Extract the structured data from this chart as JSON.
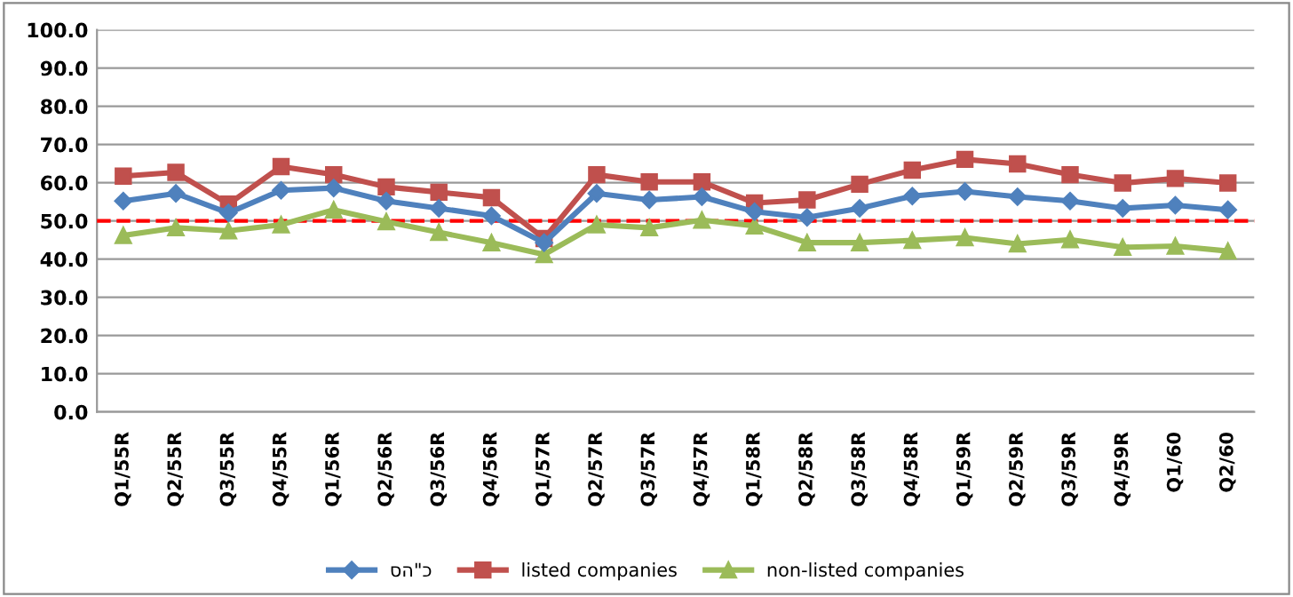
{
  "chart_data": {
    "type": "line",
    "categories": [
      "Q1/55R",
      "Q2/55R",
      "Q3/55R",
      "Q4/55R",
      "Q1/56R",
      "Q2/56R",
      "Q3/56R",
      "Q4/56R",
      "Q1/57R",
      "Q2/57R",
      "Q3/57R",
      "Q4/57R",
      "Q1/58R",
      "Q2/58R",
      "Q3/58R",
      "Q4/58R",
      "Q1/59R",
      "Q2/59R",
      "Q3/59R",
      "Q4/59R",
      "Q1/60",
      "Q2/60"
    ],
    "series": [
      {
        "name": "סה\"כ",
        "color": "#4f81bd",
        "marker": "diamond",
        "values": [
          55.2,
          57.2,
          52.1,
          58.0,
          58.6,
          55.2,
          53.3,
          51.3,
          44.3,
          57.2,
          55.5,
          56.3,
          52.4,
          50.9,
          53.3,
          56.5,
          57.7,
          56.3,
          55.2,
          53.3,
          54.1,
          52.9
        ]
      },
      {
        "name": "listed companies",
        "color": "#c0504d",
        "marker": "square",
        "values": [
          61.7,
          62.7,
          54.4,
          64.2,
          62.1,
          58.9,
          57.5,
          56.1,
          45.4,
          62.1,
          60.2,
          60.2,
          54.7,
          55.5,
          59.6,
          63.3,
          66.1,
          64.9,
          62.1,
          59.9,
          61.1,
          59.9
        ]
      },
      {
        "name": "non-listed companies",
        "color": "#9bbb59",
        "marker": "triangle",
        "values": [
          46.2,
          48.2,
          47.4,
          49.0,
          52.9,
          49.8,
          47.0,
          44.3,
          41.2,
          49.0,
          48.2,
          50.2,
          48.7,
          44.3,
          44.3,
          44.9,
          45.6,
          44.0,
          45.1,
          43.1,
          43.4,
          42.1
        ]
      }
    ],
    "ylim": [
      0,
      100
    ],
    "yticks": [
      {
        "value": 0,
        "label": "0.0"
      },
      {
        "value": 10,
        "label": "10.0"
      },
      {
        "value": 20,
        "label": "20.0"
      },
      {
        "value": 30,
        "label": "30.0"
      },
      {
        "value": 40,
        "label": "40.0"
      },
      {
        "value": 50,
        "label": "50.0"
      },
      {
        "value": 60,
        "label": "60.0"
      },
      {
        "value": 70,
        "label": "70.0"
      },
      {
        "value": 80,
        "label": "80.0"
      },
      {
        "value": 90,
        "label": "90.0"
      },
      {
        "value": 100,
        "label": "100.0"
      }
    ],
    "ref_lines": [
      {
        "axis": "y",
        "value": 50,
        "color": "#ff0000",
        "line_style": "dashed"
      }
    ],
    "grid": "y",
    "legend": "bottom",
    "line_style": "solid"
  }
}
